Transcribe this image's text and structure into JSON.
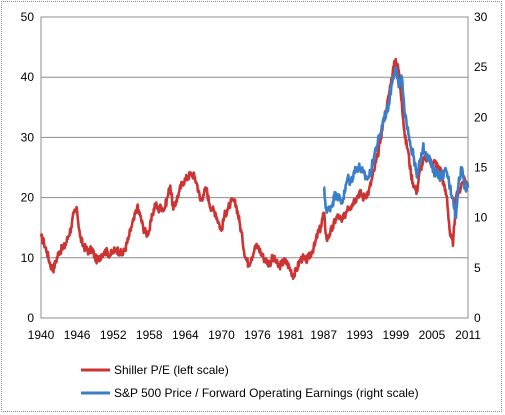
{
  "chart_data": {
    "type": "line",
    "title": "",
    "xlabel": "",
    "ylabel": "",
    "xlim": [
      1940,
      2011
    ],
    "ylim_left": [
      0,
      50
    ],
    "ylim_right": [
      0,
      30
    ],
    "x_ticks": [
      "1940",
      "1946",
      "1952",
      "1958",
      "1964",
      "1970",
      "1976",
      "1981",
      "1987",
      "1993",
      "1999",
      "2005",
      "2011"
    ],
    "x_tick_values": [
      1940,
      1946,
      1952,
      1958,
      1964,
      1970,
      1976,
      1981.5,
      1987,
      1993,
      1999,
      2005,
      2011
    ],
    "y_left_ticks": [
      "0",
      "10",
      "20",
      "30",
      "40",
      "50"
    ],
    "y_left_tick_values": [
      0,
      10,
      20,
      30,
      40,
      50
    ],
    "y_right_ticks": [
      "0",
      "5",
      "10",
      "15",
      "20",
      "25",
      "30"
    ],
    "y_right_tick_values": [
      0,
      5,
      10,
      15,
      20,
      25,
      30
    ],
    "grid": "horizontal",
    "legend_position": "bottom",
    "series": [
      {
        "name": "Shiller P/E (left scale)",
        "axis": "left",
        "color": "#cc3333",
        "x": [
          1940,
          1940.5,
          1941,
          1941.5,
          1942,
          1942.5,
          1943,
          1943.5,
          1944,
          1944.5,
          1945,
          1945.5,
          1946,
          1946.5,
          1947,
          1947.5,
          1948,
          1948.5,
          1949,
          1949.5,
          1950,
          1950.5,
          1951,
          1951.5,
          1952,
          1952.5,
          1953,
          1953.5,
          1954,
          1954.5,
          1955,
          1955.5,
          1956,
          1956.5,
          1957,
          1957.5,
          1958,
          1958.5,
          1959,
          1959.5,
          1960,
          1960.5,
          1961,
          1961.5,
          1962,
          1962.5,
          1963,
          1963.5,
          1964,
          1964.5,
          1965,
          1965.5,
          1966,
          1966.5,
          1967,
          1967.5,
          1968,
          1968.5,
          1969,
          1969.5,
          1970,
          1970.5,
          1971,
          1971.5,
          1972,
          1972.5,
          1973,
          1973.5,
          1974,
          1974.5,
          1975,
          1975.5,
          1976,
          1976.5,
          1977,
          1977.5,
          1978,
          1978.5,
          1979,
          1979.5,
          1980,
          1980.5,
          1981,
          1981.5,
          1982,
          1982.5,
          1983,
          1983.5,
          1984,
          1984.5,
          1985,
          1985.5,
          1986,
          1986.5,
          1987,
          1987.5,
          1988,
          1988.5,
          1989,
          1989.5,
          1990,
          1990.5,
          1991,
          1991.5,
          1992,
          1992.5,
          1993,
          1993.5,
          1994,
          1994.5,
          1995,
          1995.5,
          1996,
          1996.5,
          1997,
          1997.5,
          1998,
          1998.5,
          1999,
          1999.5,
          2000,
          2000.5,
          2001,
          2001.5,
          2002,
          2002.5,
          2003,
          2003.5,
          2004,
          2004.5,
          2005,
          2005.5,
          2006,
          2006.5,
          2007,
          2007.5,
          2008,
          2008.5,
          2009,
          2009.5,
          2010,
          2010.5,
          2011
        ],
        "values": [
          13.5,
          12.5,
          11,
          9,
          8,
          9.5,
          11,
          11.5,
          12,
          13.5,
          15,
          17.5,
          17.8,
          13.5,
          12,
          11.5,
          11,
          11.5,
          10,
          9.5,
          10.5,
          11,
          11,
          10.5,
          11,
          11.5,
          11,
          10.5,
          11.5,
          13,
          15,
          16.5,
          18.5,
          17,
          15,
          14,
          14.5,
          17,
          19,
          18,
          18.5,
          18,
          20,
          22,
          18,
          19.5,
          21,
          22.5,
          23,
          23.5,
          24,
          23.5,
          22,
          19.5,
          20.5,
          21.5,
          19,
          18,
          17.5,
          16,
          14.5,
          17,
          18,
          19,
          19.5,
          18.5,
          16,
          13,
          10,
          9,
          10,
          11.5,
          12,
          11,
          10,
          9.5,
          9,
          10,
          9.5,
          8.5,
          9,
          9.5,
          9,
          8,
          7,
          8,
          9.5,
          10,
          9.5,
          10,
          11,
          12,
          14,
          15,
          17.5,
          13,
          14,
          15,
          16.5,
          17,
          16,
          17,
          18.5,
          18.5,
          19.5,
          20,
          21,
          20,
          20.5,
          21,
          23,
          25,
          27,
          30,
          33,
          35,
          38,
          41,
          43,
          41,
          36,
          30,
          28,
          24,
          22,
          21,
          24.5,
          26,
          26.5,
          26.5,
          25.5,
          26,
          25,
          24.5,
          22,
          20,
          14,
          12,
          20,
          21,
          22.5,
          23,
          22
        ]
      },
      {
        "name": "S&P 500 Price / Forward Operating Earnings (right scale)",
        "axis": "right",
        "color": "#3a7ec7",
        "x": [
          1987,
          1987.5,
          1988,
          1988.5,
          1989,
          1989.5,
          1990,
          1990.5,
          1991,
          1991.5,
          1992,
          1992.5,
          1993,
          1993.5,
          1994,
          1994.5,
          1995,
          1995.5,
          1996,
          1996.5,
          1997,
          1997.5,
          1998,
          1998.5,
          1999,
          1999.5,
          2000,
          2000.5,
          2001,
          2001.5,
          2002,
          2002.5,
          2003,
          2003.5,
          2004,
          2004.5,
          2005,
          2005.5,
          2006,
          2006.5,
          2007,
          2007.5,
          2008,
          2008.5,
          2009,
          2009.5,
          2010,
          2010.5,
          2011
        ],
        "values": [
          13,
          10.5,
          11,
          11.5,
          12.5,
          12,
          11.5,
          12.5,
          14,
          13.5,
          14.5,
          15,
          15,
          14.5,
          14,
          14,
          15,
          16.5,
          17.5,
          18.5,
          20,
          20.5,
          22,
          24,
          25,
          23,
          24,
          20,
          19,
          17,
          16,
          14,
          15.5,
          17,
          16.5,
          16,
          15,
          14.5,
          14.5,
          14,
          14.5,
          14.5,
          13,
          12,
          10,
          14,
          15,
          13,
          13
        ]
      }
    ]
  }
}
